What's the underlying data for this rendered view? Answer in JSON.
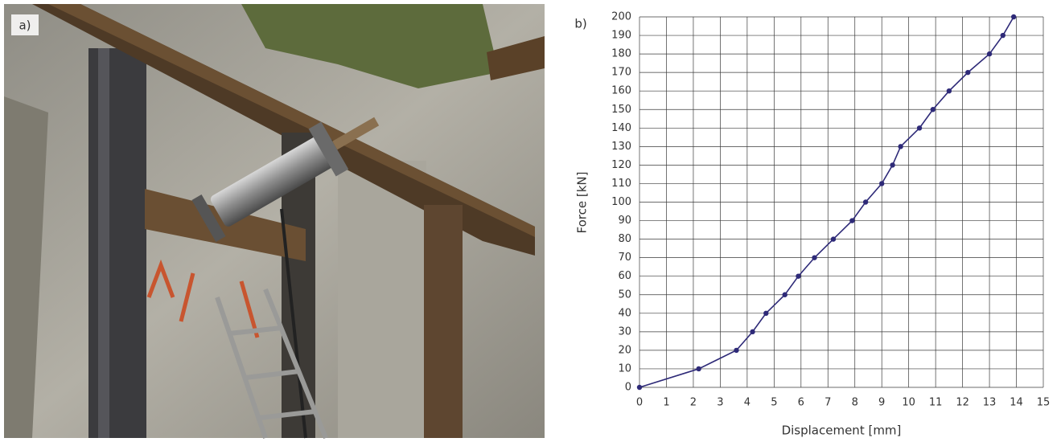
{
  "panel_labels": [
    "a)",
    "b)"
  ],
  "chart_data": {
    "type": "line",
    "xlabel": "Displacement [mm]",
    "ylabel": "Force [kN]",
    "x": [
      0,
      2.2,
      3.6,
      4.2,
      4.7,
      5.4,
      5.9,
      6.5,
      7.2,
      7.9,
      8.4,
      9.0,
      9.4,
      9.7,
      10.4,
      10.9,
      11.5,
      12.2,
      13.0,
      13.5,
      13.9
    ],
    "values": [
      0,
      10,
      20,
      30,
      40,
      50,
      60,
      70,
      80,
      90,
      100,
      110,
      120,
      130,
      140,
      150,
      160,
      170,
      180,
      190,
      200
    ],
    "color": "#2e2a78",
    "markers": true,
    "grid": true,
    "xlim": [
      0,
      15
    ],
    "xticks": [
      0,
      1,
      2,
      3,
      4,
      5,
      6,
      7,
      8,
      9,
      10,
      11,
      12,
      13,
      14,
      15
    ],
    "ylim": [
      0,
      200
    ],
    "yticks": [
      0,
      10,
      20,
      30,
      40,
      50,
      60,
      70,
      80,
      90,
      100,
      110,
      120,
      130,
      140,
      150,
      160,
      170,
      180,
      190,
      200
    ]
  }
}
